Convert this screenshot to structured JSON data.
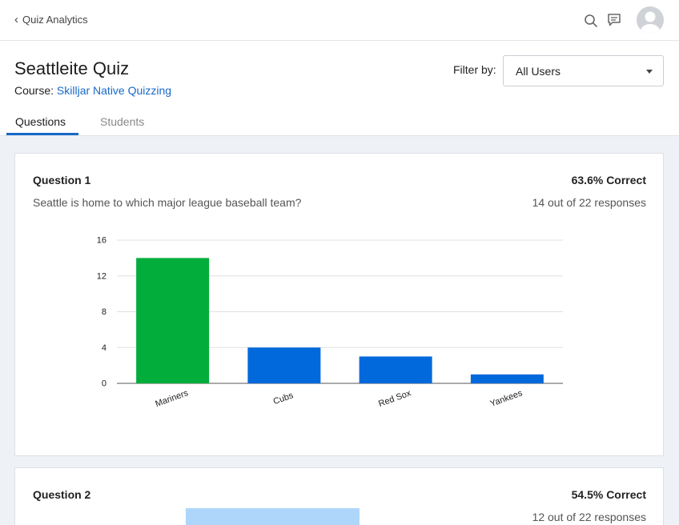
{
  "topbar": {
    "back_label": "Quiz Analytics",
    "icons": [
      "search-icon",
      "comment-icon",
      "avatar-icon"
    ]
  },
  "header": {
    "title": "Seattleite Quiz",
    "course_prefix": "Course:",
    "course_name": "Skilljar Native Quizzing",
    "filter_label": "Filter by:",
    "filter_value": "All Users",
    "tabs": [
      {
        "label": "Questions",
        "active": true
      },
      {
        "label": "Students",
        "active": false
      }
    ]
  },
  "questions": [
    {
      "title": "Question 1",
      "correct": "63.6% Correct",
      "text": "Seattle is home to which major league baseball team?",
      "responses": "14 out of 22 responses"
    },
    {
      "title": "Question 2",
      "correct": "54.5% Correct",
      "responses": "12 out of 22 responses"
    }
  ],
  "colors": {
    "correct": "#03ad3b",
    "incorrect": "#0269dc",
    "accent": "#1769c7"
  },
  "chart_data": {
    "type": "bar",
    "categories": [
      "Mariners",
      "Cubs",
      "Red Sox",
      "Yankees"
    ],
    "values": [
      14,
      4,
      3,
      1
    ],
    "correct_index": 0,
    "ylim": [
      0,
      16
    ],
    "yticks": [
      0,
      4,
      8,
      12,
      16
    ],
    "grid": true,
    "title": "",
    "xlabel": "",
    "ylabel": ""
  }
}
